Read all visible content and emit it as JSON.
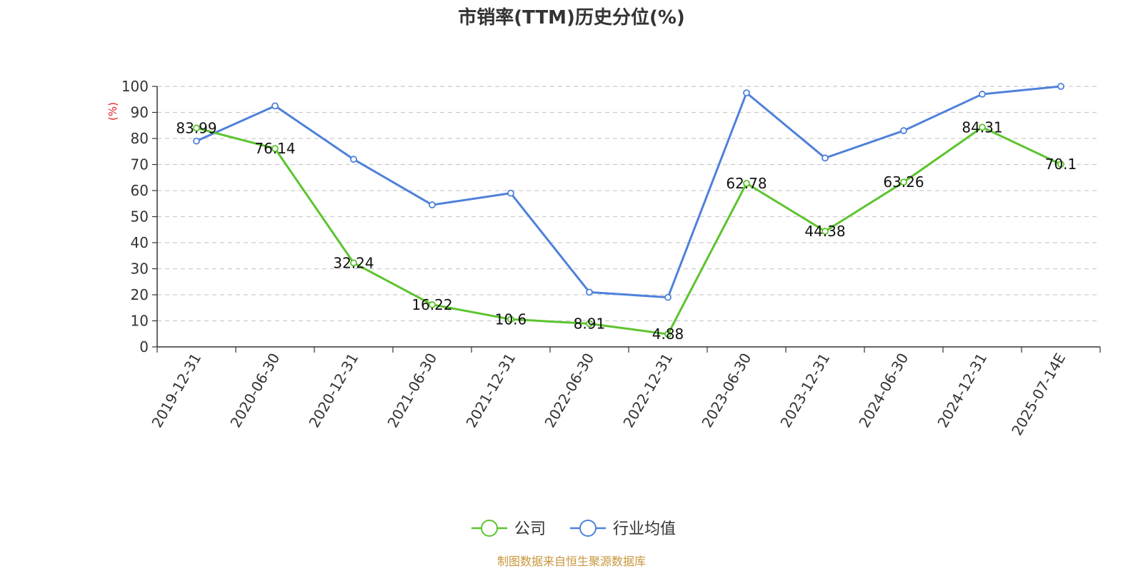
{
  "chart_data": {
    "type": "line",
    "title": "市销率(TTM)历史分位(%)",
    "ylabel": "(%)",
    "ylim": [
      0,
      100
    ],
    "yticks": [
      0,
      10,
      20,
      30,
      40,
      50,
      60,
      70,
      80,
      90,
      100
    ],
    "categories": [
      "2019-12-31",
      "2020-06-30",
      "2020-12-31",
      "2021-06-30",
      "2021-12-31",
      "2022-06-30",
      "2022-12-31",
      "2023-06-30",
      "2023-12-31",
      "2024-06-30",
      "2024-12-31",
      "2025-07-14E"
    ],
    "grid": true,
    "legend_position": "bottom",
    "series": [
      {
        "name": "公司",
        "color": "#5cc42e",
        "values": [
          83.99,
          76.14,
          32.24,
          16.22,
          10.6,
          8.91,
          4.88,
          62.78,
          44.38,
          63.26,
          84.31,
          70.1
        ],
        "labels": [
          "83.99",
          "76.14",
          "32.24",
          "16.22",
          "10.6",
          "8.91",
          "4.88",
          "62.78",
          "44.38",
          "63.26",
          "84.31",
          "70.1"
        ]
      },
      {
        "name": "行业均值",
        "color": "#4f81da",
        "values": [
          79,
          92.5,
          72,
          54.5,
          59,
          21,
          19,
          97.5,
          72.5,
          83,
          97,
          100
        ]
      }
    ]
  },
  "source": {
    "text": "制图数据来自恒生聚源数据库",
    "color": "#c8963c"
  },
  "unit_color": "#e02020"
}
